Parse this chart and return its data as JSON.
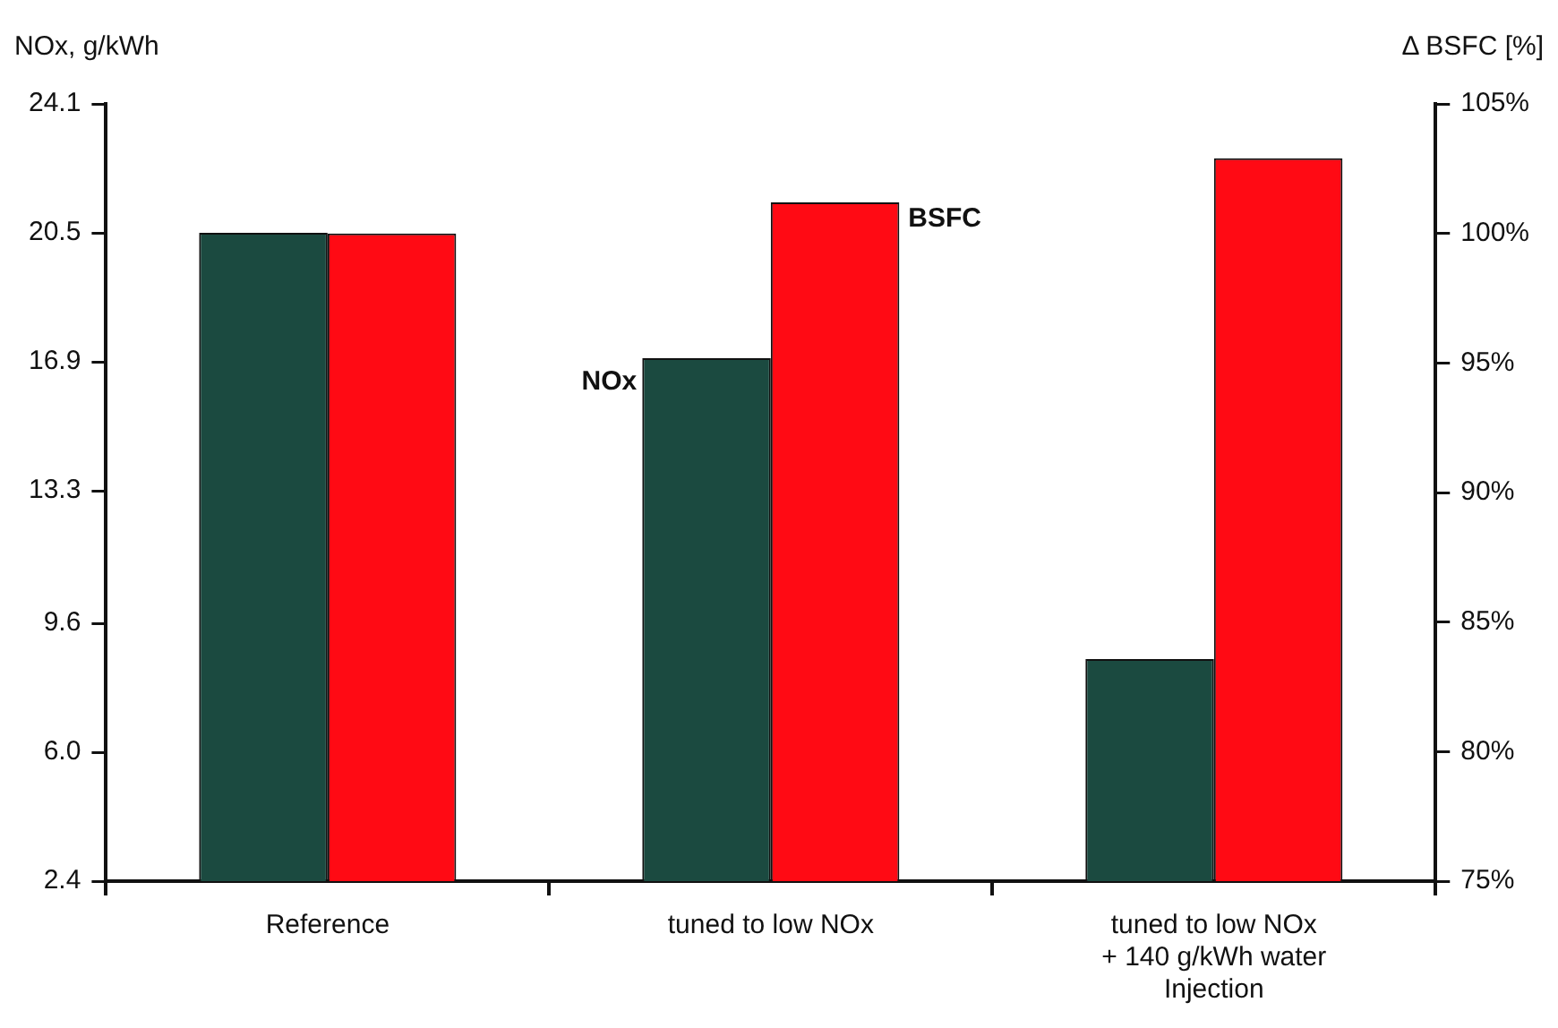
{
  "chart_data": {
    "type": "bar",
    "ylabel": "NOx, g/kWh",
    "y2label": "Δ BSFC [%]",
    "categories": [
      "Reference",
      "tuned to low NOx",
      "tuned to low NOx\n+ 140 g/kWh water\nInjection"
    ],
    "series": [
      {
        "name": "NOx",
        "color": "#1b4a40",
        "values": [
          20.5,
          17.0,
          8.6
        ]
      },
      {
        "name": "BSFC",
        "color": "#ff0a14",
        "values": [
          100,
          101.2,
          102.9
        ],
        "axis": "y2"
      }
    ],
    "ylim": [
      2.4,
      24.1
    ],
    "yticks": [
      {
        "value": 2.4,
        "label": "2.4"
      },
      {
        "value": 6,
        "label": "6.0"
      },
      {
        "value": 9.6,
        "label": "9.6"
      },
      {
        "value": 13.3,
        "label": "13.3"
      },
      {
        "value": 16.9,
        "label": "16.9"
      },
      {
        "value": 20.5,
        "label": "20.5"
      },
      {
        "value": 24.1,
        "label": "24.1"
      }
    ],
    "y2lim": [
      75,
      105
    ],
    "y2ticks": [
      {
        "value": 75,
        "label": "75%"
      },
      {
        "value": 80,
        "label": "80%"
      },
      {
        "value": 85,
        "label": "85%"
      },
      {
        "value": 90,
        "label": "90%"
      },
      {
        "value": 95,
        "label": "95%"
      },
      {
        "value": 100,
        "label": "100%"
      },
      {
        "value": 105,
        "label": "105%"
      }
    ],
    "grid": false,
    "legend": false
  }
}
